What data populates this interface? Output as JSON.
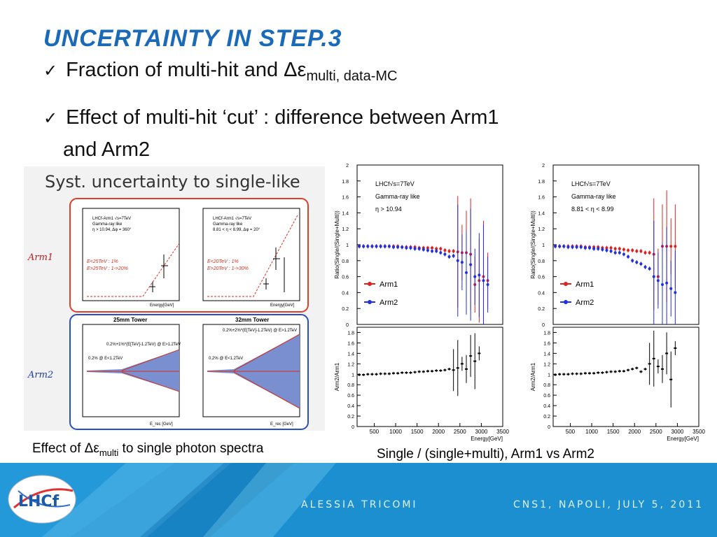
{
  "slide": {
    "title": "UNCERTAINTY IN STEP.3",
    "bullets": {
      "b1_main": "Fraction of multi-hit and Δε",
      "b1_sub": "multi, data-MC",
      "b2_line1": "Effect of multi-hit ‘cut’ : difference between Arm1",
      "b2_line2": "and Arm2"
    }
  },
  "left_figure": {
    "header": "Syst. uncertainty to single-like",
    "arm1_label": "Arm1",
    "arm2_label": "Arm2",
    "arm1_plots": [
      {
        "legend": [
          "LHCf-Arm1 √s=7TeV",
          "Gamma-ray like",
          "η > 10.94, Δφ = 360°"
        ],
        "notes": [
          "E<25TeV : 1%",
          "E>25TeV : 1->20%"
        ],
        "xlabel": "Energy[GeV]",
        "ylabel": "Systematic uncertainty"
      },
      {
        "legend": [
          "LHCf-Arm1 √s=7TeV",
          "Gamma-ray like",
          "8.81 < η < 8.99, Δφ = 20°"
        ],
        "notes": [
          "E<20TeV : 1%",
          "E>20TeV : 1->30%"
        ],
        "xlabel": "Energy[GeV]",
        "ylabel": "Systematic uncertainty"
      }
    ],
    "arm2_plots": [
      {
        "title": "25mm Tower",
        "notes": [
          "0.2%+1%*(E[TeV]-1.2TeV) @ E>1.2TeV",
          "0.2% @ E<1.2TeV"
        ],
        "xlabel": "E_rec [GeV]",
        "ylabel": "Systematic Error"
      },
      {
        "title": "32mm Tower",
        "notes": [
          "0.2%+2%*(E[TeV]-1.2TeV) @ E>1.2TeV",
          "0.2% @ E<1.2TeV"
        ],
        "xlabel": "E_rec [GeV]",
        "ylabel": "Systematic Error"
      }
    ],
    "caption_main": "Effect of Δε",
    "caption_sub": "multi",
    "caption_rest": " to single photon spectra"
  },
  "right_figures": {
    "plots": [
      {
        "legend": [
          "LHCf√s=7TeV",
          "Gamma-ray like",
          "η > 10.94"
        ]
      },
      {
        "legend": [
          "LHCf√s=7TeV",
          "Gamma-ray like",
          "8.81 < η < 8.99"
        ]
      }
    ],
    "series_names": [
      "Arm1",
      "Arm2"
    ],
    "top_ylabel": "Ratio(Single/(Single+Multi))",
    "bottom_ylabel": "Arm2/Arm1",
    "xlabel": "Energy[GeV]",
    "top_yticks": [
      "0",
      "0.2",
      "0.4",
      "0.6",
      "0.8",
      "1",
      "1.2",
      "1.4",
      "1.6",
      "1.8",
      "2"
    ],
    "bottom_yticks": [
      "0",
      "0.2",
      "0.4",
      "0.6",
      "0.8",
      "1",
      "1.2",
      "1.4",
      "1.6",
      "1.8"
    ],
    "xticks": [
      "500",
      "1000",
      "1500",
      "2000",
      "2500",
      "3000",
      "3500"
    ],
    "caption": "Single / (single+multi), Arm1 vs Arm2",
    "colors": {
      "Arm1": "#e02020",
      "Arm2": "#2030e0"
    }
  },
  "chart_data": [
    {
      "type": "scatter",
      "title": "",
      "xlabel": "Energy[GeV]",
      "ylabel": "Ratio(Single/(Single+Multi))",
      "ylim": [
        0,
        2
      ],
      "xlim": [
        100,
        3500
      ],
      "legend_placement": "left",
      "series": [
        {
          "name": "Arm1",
          "x": [
            150,
            250,
            350,
            450,
            550,
            650,
            750,
            850,
            950,
            1050,
            1150,
            1250,
            1350,
            1450,
            1550,
            1650,
            1750,
            1850,
            1950,
            2050,
            2150,
            2250,
            2350,
            2450,
            2550,
            2650,
            2750,
            2850,
            2950,
            3050,
            3150
          ],
          "y": [
            0.98,
            0.98,
            0.98,
            0.98,
            0.98,
            0.98,
            0.98,
            0.98,
            0.98,
            0.98,
            0.97,
            0.97,
            0.97,
            0.97,
            0.96,
            0.96,
            0.96,
            0.96,
            0.95,
            0.95,
            0.93,
            0.92,
            0.92,
            0.91,
            0.9,
            0.9,
            0.88,
            0.5,
            0.55,
            0.6,
            0.55
          ]
        },
        {
          "name": "Arm2",
          "x": [
            150,
            250,
            350,
            450,
            550,
            650,
            750,
            850,
            950,
            1050,
            1150,
            1250,
            1350,
            1450,
            1550,
            1650,
            1750,
            1850,
            1950,
            2050,
            2150,
            2250,
            2350,
            2450,
            2550,
            2650,
            2750,
            2850,
            2950,
            3050,
            3150
          ],
          "y": [
            0.98,
            0.98,
            0.98,
            0.98,
            0.98,
            0.98,
            0.98,
            0.98,
            0.97,
            0.97,
            0.97,
            0.96,
            0.96,
            0.95,
            0.95,
            0.94,
            0.93,
            0.92,
            0.92,
            0.9,
            0.88,
            0.85,
            0.86,
            0.8,
            0.78,
            0.65,
            0.75,
            0.6,
            0.62,
            0.55,
            0.5
          ]
        }
      ]
    },
    {
      "type": "scatter",
      "title": "",
      "xlabel": "Energy[GeV]",
      "ylabel": "Arm2/Arm1",
      "ylim": [
        0,
        1.9
      ],
      "xlim": [
        100,
        3500
      ],
      "series": [
        {
          "name": "",
          "x": [
            150,
            250,
            350,
            450,
            550,
            650,
            750,
            850,
            950,
            1050,
            1150,
            1250,
            1350,
            1450,
            1550,
            1650,
            1750,
            1850,
            1950,
            2050,
            2150,
            2250,
            2350,
            2450,
            2550,
            2650,
            2750,
            2850,
            2950
          ],
          "y": [
            0.99,
            0.99,
            1.0,
            1.0,
            1.0,
            1.01,
            1.01,
            1.01,
            1.02,
            1.02,
            1.03,
            1.03,
            1.03,
            1.04,
            1.05,
            1.05,
            1.06,
            1.06,
            1.07,
            1.07,
            1.08,
            1.1,
            1.08,
            1.12,
            1.2,
            1.1,
            1.35,
            1.25,
            1.4
          ]
        }
      ]
    },
    {
      "type": "scatter",
      "title": "",
      "xlabel": "Energy[GeV]",
      "ylabel": "Ratio(Single/(Single+Multi))",
      "ylim": [
        0,
        2
      ],
      "xlim": [
        100,
        3500
      ],
      "series": [
        {
          "name": "Arm1",
          "x": [
            150,
            250,
            350,
            450,
            550,
            650,
            750,
            850,
            950,
            1050,
            1150,
            1250,
            1350,
            1450,
            1550,
            1650,
            1750,
            1850,
            1950,
            2050,
            2150,
            2250,
            2350,
            2450,
            2550,
            2650,
            2750,
            2850,
            2950
          ],
          "y": [
            0.98,
            0.98,
            0.98,
            0.98,
            0.98,
            0.98,
            0.98,
            0.97,
            0.97,
            0.97,
            0.97,
            0.96,
            0.96,
            0.96,
            0.95,
            0.95,
            0.94,
            0.93,
            0.93,
            0.92,
            0.92,
            0.9,
            0.9,
            0.88,
            0.6,
            0.98,
            0.98,
            0.98,
            0.98
          ]
        },
        {
          "name": "Arm2",
          "x": [
            150,
            250,
            350,
            450,
            550,
            650,
            750,
            850,
            950,
            1050,
            1150,
            1250,
            1350,
            1450,
            1550,
            1650,
            1750,
            1850,
            1950,
            2050,
            2150,
            2250,
            2350,
            2450,
            2550,
            2650,
            2750,
            2850,
            2950
          ],
          "y": [
            0.98,
            0.98,
            0.98,
            0.97,
            0.97,
            0.97,
            0.97,
            0.96,
            0.96,
            0.95,
            0.95,
            0.94,
            0.93,
            0.92,
            0.9,
            0.9,
            0.88,
            0.85,
            0.8,
            0.78,
            0.76,
            0.72,
            0.7,
            0.6,
            0.55,
            0.5,
            0.52,
            0.45,
            0.4
          ]
        }
      ]
    },
    {
      "type": "scatter",
      "title": "",
      "xlabel": "Energy[GeV]",
      "ylabel": "Arm2/Arm1",
      "ylim": [
        0,
        1.9
      ],
      "xlim": [
        100,
        3500
      ],
      "series": [
        {
          "name": "",
          "x": [
            150,
            250,
            350,
            450,
            550,
            650,
            750,
            850,
            950,
            1050,
            1150,
            1250,
            1350,
            1450,
            1550,
            1650,
            1750,
            1850,
            1950,
            2050,
            2150,
            2250,
            2350,
            2450,
            2550,
            2650,
            2750,
            2850,
            2950
          ],
          "y": [
            0.99,
            1.0,
            1.0,
            1.0,
            1.01,
            1.01,
            1.01,
            1.02,
            1.02,
            1.02,
            1.03,
            1.03,
            1.04,
            1.05,
            1.05,
            1.06,
            1.06,
            1.08,
            1.1,
            1.12,
            1.05,
            1.1,
            1.2,
            1.3,
            1.15,
            1.1,
            1.4,
            0.9,
            1.5
          ]
        }
      ]
    }
  ],
  "footer": {
    "author": "ALESSIA TRICOMI",
    "conference": "CNS1, NAPOLI, JULY 5, 2011",
    "logo_text": "LHCf"
  }
}
